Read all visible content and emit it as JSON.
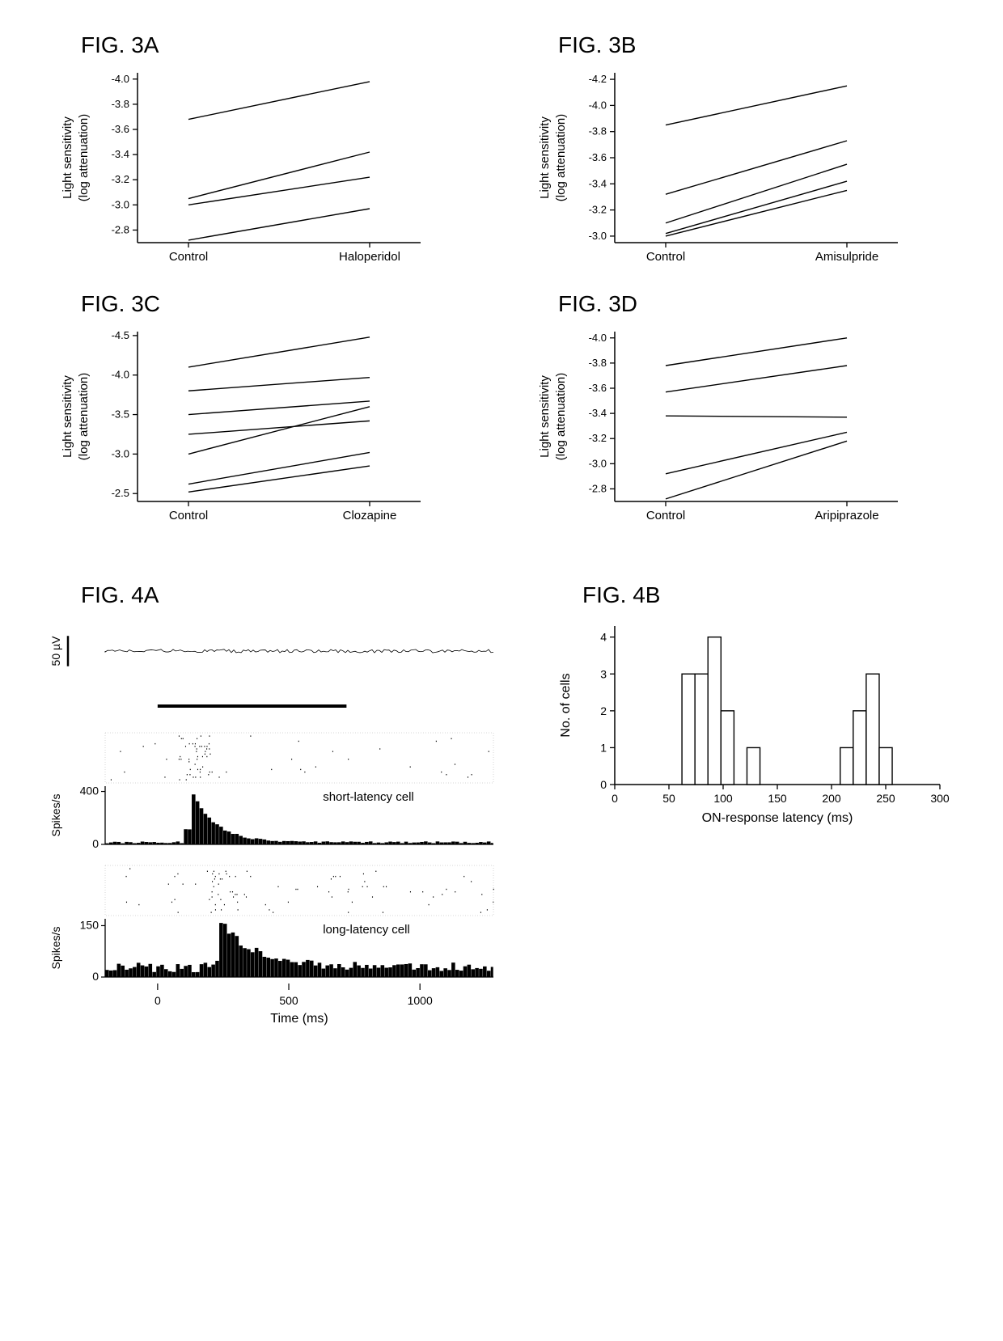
{
  "figs3": [
    {
      "title": "FIG. 3A",
      "ylabel": "Light sensitivity",
      "ysub": "(log attenuation)",
      "xlabels": [
        "Control",
        "Haloperidol"
      ],
      "yticks": [
        -4.0,
        -3.8,
        -3.6,
        -3.4,
        -3.2,
        -3.0,
        -2.8
      ],
      "ylim": [
        -2.7,
        -4.05
      ],
      "lines": [
        [
          -3.68,
          -3.98
        ],
        [
          -3.05,
          -3.42
        ],
        [
          -3.0,
          -3.22
        ],
        [
          -2.72,
          -2.97
        ]
      ],
      "line_color": "#000000",
      "line_width": 1.4,
      "tick_fontsize": 13,
      "label_fontsize": 15
    },
    {
      "title": "FIG. 3B",
      "ylabel": "Light sensitivity",
      "ysub": "(log attenuation)",
      "xlabels": [
        "Control",
        "Amisulpride"
      ],
      "yticks": [
        -4.2,
        -4.0,
        -3.8,
        -3.6,
        -3.4,
        -3.2,
        -3.0
      ],
      "ylim": [
        -2.95,
        -4.25
      ],
      "lines": [
        [
          -3.85,
          -4.15
        ],
        [
          -3.32,
          -3.73
        ],
        [
          -3.1,
          -3.55
        ],
        [
          -3.02,
          -3.42
        ],
        [
          -3.0,
          -3.35
        ]
      ],
      "line_color": "#000000",
      "line_width": 1.4,
      "tick_fontsize": 13,
      "label_fontsize": 15
    },
    {
      "title": "FIG. 3C",
      "ylabel": "Light sensitivity",
      "ysub": "(log attenuation)",
      "xlabels": [
        "Control",
        "Clozapine"
      ],
      "yticks": [
        -4.5,
        -4.0,
        -3.5,
        -3.0,
        -2.5
      ],
      "ylim": [
        -2.4,
        -4.55
      ],
      "lines": [
        [
          -4.1,
          -4.48
        ],
        [
          -3.8,
          -3.97
        ],
        [
          -3.5,
          -3.67
        ],
        [
          -3.25,
          -3.42
        ],
        [
          -3.0,
          -3.6
        ],
        [
          -2.62,
          -3.02
        ],
        [
          -2.52,
          -2.85
        ]
      ],
      "line_color": "#000000",
      "line_width": 1.4,
      "tick_fontsize": 13,
      "label_fontsize": 15
    },
    {
      "title": "FIG. 3D",
      "ylabel": "Light sensitivity",
      "ysub": "(log attenuation)",
      "xlabels": [
        "Control",
        "Aripiprazole"
      ],
      "yticks": [
        -4.0,
        -3.8,
        -3.6,
        -3.4,
        -3.2,
        -3.0,
        -2.8
      ],
      "ylim": [
        -2.7,
        -4.05
      ],
      "lines": [
        [
          -3.78,
          -4.0
        ],
        [
          -3.57,
          -3.78
        ],
        [
          -3.38,
          -3.37
        ],
        [
          -2.92,
          -3.25
        ],
        [
          -2.72,
          -3.18
        ]
      ],
      "line_color": "#000000",
      "line_width": 1.4,
      "tick_fontsize": 13,
      "label_fontsize": 15
    }
  ],
  "fig4a": {
    "title": "FIG. 4A",
    "xlabel": "Time (ms)",
    "xlim": [
      -200,
      1280
    ],
    "xticks": [
      0,
      500,
      1000
    ],
    "trace": {
      "scalebar_label": "50 µV",
      "scalebar_height_uv": 50,
      "y_range_uv": 120,
      "stim_bar_start": 0,
      "stim_bar_end": 720,
      "baseline_spike_density": 0.065,
      "burst_start": 95,
      "burst_end": 180,
      "color": "#000000"
    },
    "short_cell": {
      "annotation": "short-latency cell",
      "raster_trials": 18,
      "raster_baseline_rate": 0.012,
      "raster_burst_start": 80,
      "raster_burst_end": 200,
      "raster_burst_rate": 0.18,
      "psth_ylabel": "Spikes/s",
      "psth_yticks": [
        0,
        400
      ],
      "psth_ylim": [
        0,
        440
      ],
      "psth_bin_ms": 15,
      "psth_baseline": 15,
      "psth_peak_time": 120,
      "psth_peak": 420,
      "psth_decay_ms": 90,
      "color": "#000000"
    },
    "long_cell": {
      "annotation": "long-latency cell",
      "raster_trials": 18,
      "raster_baseline_rate": 0.018,
      "raster_burst_start": 190,
      "raster_burst_end": 340,
      "raster_burst_rate": 0.12,
      "psth_ylabel": "Spikes/s",
      "psth_yticks": [
        0,
        150
      ],
      "psth_ylim": [
        0,
        170
      ],
      "psth_bin_ms": 15,
      "psth_baseline": 28,
      "psth_peak_time": 235,
      "psth_peak": 155,
      "psth_decay_ms": 140,
      "color": "#000000"
    },
    "tick_fontsize": 14,
    "label_fontsize": 16
  },
  "fig4b": {
    "title": "FIG. 4B",
    "ylabel": "No. of cells",
    "xlabel": "ON-response latency (ms)",
    "xlim": [
      0,
      300
    ],
    "xticks": [
      0,
      50,
      100,
      150,
      200,
      250,
      300
    ],
    "ylim": [
      0,
      4.3
    ],
    "yticks": [
      0,
      1,
      2,
      3,
      4
    ],
    "bin_width": 12,
    "bars": [
      {
        "x": 62,
        "y": 3
      },
      {
        "x": 74,
        "y": 3
      },
      {
        "x": 86,
        "y": 4
      },
      {
        "x": 98,
        "y": 2
      },
      {
        "x": 122,
        "y": 1
      },
      {
        "x": 208,
        "y": 1
      },
      {
        "x": 220,
        "y": 2
      },
      {
        "x": 232,
        "y": 3
      },
      {
        "x": 244,
        "y": 1
      }
    ],
    "bar_fill": "#ffffff",
    "bar_stroke": "#000000",
    "tick_fontsize": 14,
    "label_fontsize": 16
  },
  "colors": {
    "bg": "#ffffff",
    "fg": "#000000"
  }
}
